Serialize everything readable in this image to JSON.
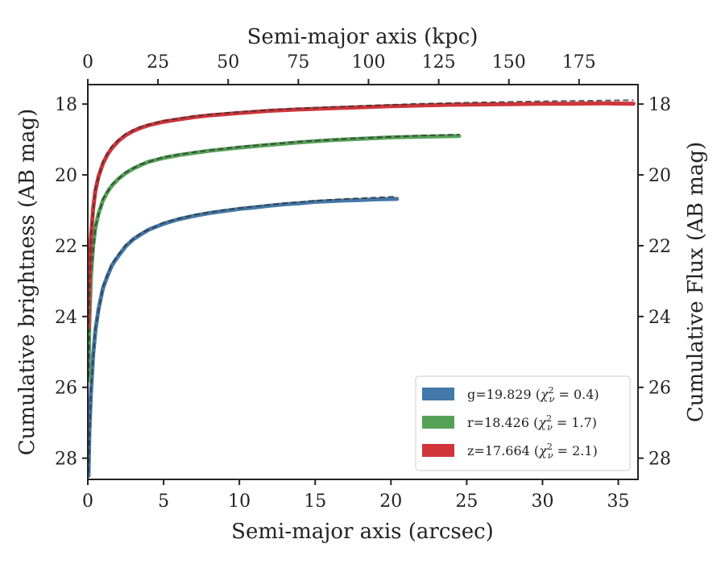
{
  "chart_data": {
    "type": "line",
    "xlabel": "Semi-major axis (arcsec)",
    "x2label": "Semi-major axis (kpc)",
    "ylabel": "Cumulative brightness (AB mag)",
    "y2label": "Cumulative Flux (AB mag)",
    "xlim": [
      0,
      36.3
    ],
    "x2lim": [
      0,
      196
    ],
    "ylim": [
      28.6,
      17.45
    ],
    "y_inverted": true,
    "xticks": [
      0,
      5,
      10,
      15,
      20,
      25,
      30,
      35
    ],
    "x2ticks": [
      0,
      25,
      50,
      75,
      100,
      125,
      150,
      175
    ],
    "yticks": [
      18,
      20,
      22,
      24,
      26,
      28
    ],
    "grid": false,
    "legend_position": "lower-right",
    "series": [
      {
        "name": "g=19.829 ($\\chi^2_\\nu=0.4$)",
        "label_main": "g=19.829 (",
        "label_chi": "χ",
        "label_sup": "2",
        "label_sub": "ν",
        "label_value": " = 0.4)",
        "color": "#4478a8",
        "x": [
          0.05,
          0.1,
          0.2,
          0.35,
          0.5,
          0.7,
          1.0,
          1.3,
          1.6,
          2.0,
          2.5,
          3.0,
          3.5,
          4.0,
          5.0,
          6.0,
          7.0,
          8.0,
          9.0,
          10.0,
          11.0,
          12.0,
          13.0,
          14.0,
          15.0,
          16.0,
          17.0,
          18.0,
          19.0,
          20.4
        ],
        "y": [
          28.5,
          27.3,
          26.2,
          25.1,
          24.4,
          23.8,
          23.2,
          22.85,
          22.55,
          22.3,
          22.02,
          21.82,
          21.68,
          21.55,
          21.38,
          21.25,
          21.16,
          21.08,
          21.02,
          20.96,
          20.92,
          20.87,
          20.83,
          20.8,
          20.76,
          20.74,
          20.72,
          20.71,
          20.69,
          20.68
        ],
        "model_x": [
          0.05,
          0.2,
          0.5,
          1.0,
          1.6,
          2.5,
          3.5,
          5.0,
          7.0,
          9.0,
          11.0,
          13.0,
          15.0,
          17.0,
          19.0,
          20.4
        ],
        "model_y": [
          28.4,
          26.1,
          24.35,
          23.15,
          22.5,
          21.98,
          21.65,
          21.35,
          21.13,
          20.99,
          20.89,
          20.8,
          20.73,
          20.68,
          20.64,
          20.61
        ]
      },
      {
        "name": "r=18.426 ($\\chi^2_\\nu=1.7$)",
        "label_main": "r=18.426 (",
        "label_chi": "χ",
        "label_sup": "2",
        "label_sub": "ν",
        "label_value": " = 1.7)",
        "color": "#55a257",
        "x": [
          0.05,
          0.1,
          0.2,
          0.35,
          0.5,
          0.7,
          1.0,
          1.3,
          1.6,
          2.0,
          2.5,
          3.0,
          3.5,
          4.0,
          5.0,
          6.0,
          7.0,
          8.0,
          10.0,
          12.0,
          14.0,
          16.0,
          18.0,
          20.0,
          22.0,
          24.5
        ],
        "y": [
          25.8,
          24.2,
          22.9,
          22.0,
          21.5,
          21.1,
          20.72,
          20.48,
          20.3,
          20.12,
          19.95,
          19.82,
          19.72,
          19.63,
          19.52,
          19.44,
          19.38,
          19.32,
          19.23,
          19.15,
          19.08,
          19.02,
          18.98,
          18.94,
          18.92,
          18.9
        ],
        "model_x": [
          0.05,
          0.2,
          0.5,
          1.0,
          1.6,
          2.5,
          3.5,
          5.0,
          7.0,
          10.0,
          14.0,
          18.0,
          22.0,
          24.5
        ],
        "model_y": [
          25.7,
          22.85,
          21.45,
          20.68,
          20.27,
          19.93,
          19.7,
          19.5,
          19.36,
          19.21,
          19.06,
          18.96,
          18.89,
          18.86
        ]
      },
      {
        "name": "z=17.664 ($\\chi^2_\\nu=2.1$)",
        "label_main": "z=17.664 (",
        "label_chi": "χ",
        "label_sup": "2",
        "label_sub": "ν",
        "label_value": " = 2.1)",
        "color": "#d0353a",
        "x": [
          0.05,
          0.1,
          0.2,
          0.35,
          0.5,
          0.7,
          1.0,
          1.3,
          1.6,
          2.0,
          2.5,
          3.0,
          3.5,
          4.0,
          5.0,
          6.0,
          7.0,
          8.0,
          10.0,
          12.0,
          14.0,
          16.0,
          18.0,
          20.0,
          22.0,
          24.0,
          26.0,
          28.0,
          30.0,
          32.0,
          34.0,
          36.0
        ],
        "y": [
          24.3,
          23.0,
          21.8,
          20.95,
          20.45,
          20.05,
          19.68,
          19.42,
          19.24,
          19.05,
          18.88,
          18.76,
          18.67,
          18.6,
          18.5,
          18.43,
          18.37,
          18.32,
          18.25,
          18.19,
          18.15,
          18.12,
          18.09,
          18.06,
          18.04,
          18.02,
          18.01,
          18.0,
          17.99,
          17.99,
          17.98,
          17.99
        ],
        "model_x": [
          0.05,
          0.2,
          0.5,
          1.0,
          1.6,
          2.5,
          3.5,
          5.0,
          7.0,
          10.0,
          14.0,
          18.0,
          22.0,
          26.0,
          30.0,
          34.0,
          36.0
        ],
        "model_y": [
          24.2,
          21.75,
          20.4,
          19.62,
          19.18,
          18.84,
          18.64,
          18.47,
          18.34,
          18.22,
          18.12,
          18.05,
          17.99,
          17.95,
          17.92,
          17.9,
          17.89
        ]
      }
    ]
  }
}
